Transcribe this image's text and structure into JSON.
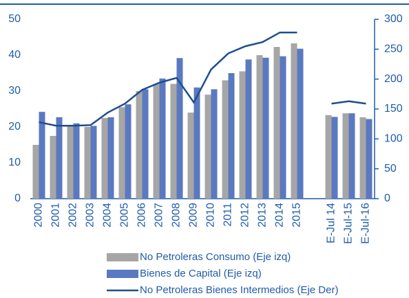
{
  "chart_data": {
    "type": "bar",
    "categories": [
      "2000",
      "2001",
      "2002",
      "2003",
      "2004",
      "2005",
      "2006",
      "2007",
      "2008",
      "2009",
      "2010",
      "2011",
      "2012",
      "2013",
      "2014",
      "2015",
      null,
      "E-Jul 14",
      "E-Jul-15",
      "E-Jul-16"
    ],
    "series": [
      {
        "name": "No Petroleras Consumo (Eje izq)",
        "color": "#a6a6a6",
        "type": "bar",
        "values": [
          15,
          17.5,
          20.5,
          20,
          22.5,
          25.5,
          30,
          32,
          32,
          24,
          29,
          33,
          35.5,
          40,
          42.3,
          43.3,
          null,
          23.3,
          23.8,
          22.7
        ]
      },
      {
        "name": "Bienes de Capital (Eje izq)",
        "color": "#5b79c0",
        "type": "bar",
        "values": [
          24.2,
          22.7,
          21,
          20.3,
          22.7,
          26.3,
          30.5,
          33.5,
          39.2,
          31,
          30.5,
          35,
          38.8,
          39.3,
          39.7,
          41.8,
          null,
          22.8,
          23.8,
          22.2
        ]
      },
      {
        "name": "No Petroleras Bienes Intermedios (Eje Der)",
        "color": "#1f4e8c",
        "type": "line",
        "axis": "y2",
        "values": [
          128,
          122,
          122,
          123,
          144,
          159,
          182,
          194,
          202,
          161,
          216,
          243,
          255,
          262,
          278,
          278,
          null,
          159,
          163,
          159
        ]
      }
    ],
    "ylim": [
      0,
      50
    ],
    "yticks": [
      0,
      10,
      20,
      30,
      40,
      50
    ],
    "y2lim": [
      0,
      300
    ],
    "y2ticks": [
      0,
      50,
      100,
      150,
      200,
      250,
      300
    ]
  }
}
